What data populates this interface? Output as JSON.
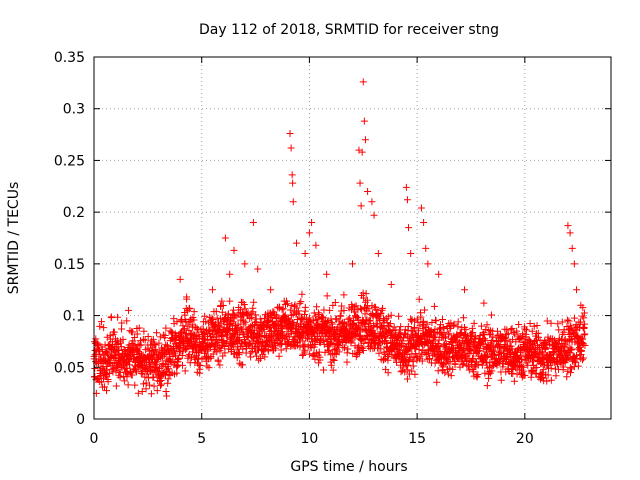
{
  "chart_data": {
    "type": "scatter",
    "title": "Day 112 of 2018, SRMTID for receiver stng",
    "xlabel": "GPS time / hours",
    "ylabel": "SRMTID / TECUs",
    "xlim": [
      0,
      24
    ],
    "ylim": [
      0,
      0.35
    ],
    "xticks": [
      0,
      5,
      10,
      15,
      20
    ],
    "xtick_labels": [
      "0",
      "5",
      "10",
      "15",
      "20"
    ],
    "yticks": [
      0,
      0.05,
      0.1,
      0.15,
      0.2,
      0.25,
      0.3,
      0.35
    ],
    "ytick_labels": [
      "0",
      "0.05",
      "0.1",
      "0.15",
      "0.2",
      "0.25",
      "0.3",
      "0.35"
    ],
    "grid": true,
    "marker": "+",
    "color": "#ff0000",
    "series": [
      {
        "name": "SRMTID",
        "baseline": [
          [
            0.0,
            0.058
          ],
          [
            1.0,
            0.06
          ],
          [
            2.0,
            0.058
          ],
          [
            3.0,
            0.055
          ],
          [
            3.8,
            0.065
          ],
          [
            4.2,
            0.085
          ],
          [
            5.0,
            0.07
          ],
          [
            6.0,
            0.085
          ],
          [
            7.0,
            0.085
          ],
          [
            8.0,
            0.082
          ],
          [
            9.0,
            0.09
          ],
          [
            10.0,
            0.085
          ],
          [
            11.0,
            0.08
          ],
          [
            12.0,
            0.085
          ],
          [
            12.5,
            0.095
          ],
          [
            13.0,
            0.09
          ],
          [
            14.0,
            0.07
          ],
          [
            14.5,
            0.06
          ],
          [
            15.0,
            0.08
          ],
          [
            16.0,
            0.07
          ],
          [
            17.0,
            0.07
          ],
          [
            18.0,
            0.065
          ],
          [
            19.0,
            0.065
          ],
          [
            20.0,
            0.065
          ],
          [
            21.0,
            0.06
          ],
          [
            22.0,
            0.07
          ],
          [
            22.8,
            0.08
          ]
        ],
        "spread": 0.018,
        "time_range": [
          0.0,
          22.8
        ],
        "step_hours": 0.0083,
        "highlights": [
          [
            0.8,
            0.098
          ],
          [
            1.6,
            0.105
          ],
          [
            2.1,
            0.088
          ],
          [
            4.0,
            0.135
          ],
          [
            4.3,
            0.118
          ],
          [
            5.5,
            0.125
          ],
          [
            6.1,
            0.175
          ],
          [
            6.3,
            0.14
          ],
          [
            6.5,
            0.163
          ],
          [
            7.0,
            0.15
          ],
          [
            7.4,
            0.19
          ],
          [
            7.6,
            0.145
          ],
          [
            8.2,
            0.125
          ],
          [
            9.1,
            0.276
          ],
          [
            9.15,
            0.262
          ],
          [
            9.2,
            0.236
          ],
          [
            9.22,
            0.228
          ],
          [
            9.25,
            0.21
          ],
          [
            9.4,
            0.17
          ],
          [
            9.8,
            0.16
          ],
          [
            10.0,
            0.18
          ],
          [
            10.1,
            0.19
          ],
          [
            10.3,
            0.168
          ],
          [
            10.8,
            0.14
          ],
          [
            11.6,
            0.12
          ],
          [
            12.0,
            0.15
          ],
          [
            12.3,
            0.26
          ],
          [
            12.35,
            0.228
          ],
          [
            12.4,
            0.206
          ],
          [
            12.45,
            0.258
          ],
          [
            12.5,
            0.326
          ],
          [
            12.55,
            0.288
          ],
          [
            12.6,
            0.27
          ],
          [
            12.7,
            0.22
          ],
          [
            12.9,
            0.21
          ],
          [
            13.0,
            0.197
          ],
          [
            13.2,
            0.16
          ],
          [
            13.8,
            0.13
          ],
          [
            14.5,
            0.224
          ],
          [
            14.55,
            0.212
          ],
          [
            14.6,
            0.185
          ],
          [
            14.7,
            0.16
          ],
          [
            15.2,
            0.204
          ],
          [
            15.3,
            0.19
          ],
          [
            15.4,
            0.165
          ],
          [
            15.5,
            0.15
          ],
          [
            16.0,
            0.14
          ],
          [
            17.2,
            0.125
          ],
          [
            18.1,
            0.112
          ],
          [
            22.0,
            0.187
          ],
          [
            22.1,
            0.18
          ],
          [
            22.2,
            0.165
          ],
          [
            22.3,
            0.15
          ],
          [
            22.4,
            0.125
          ],
          [
            22.6,
            0.11
          ]
        ]
      }
    ]
  }
}
